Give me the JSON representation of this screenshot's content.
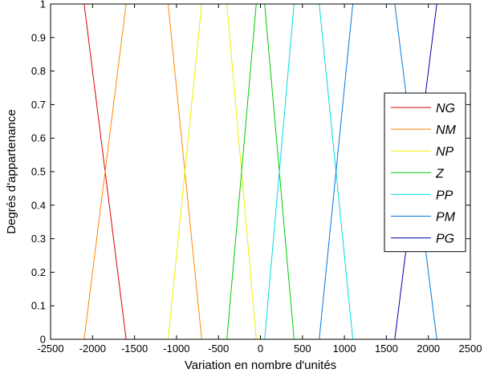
{
  "chart_data": {
    "type": "line",
    "xlabel": "Variation en nombre d'unités",
    "ylabel": "Degrés d'appartenance",
    "xlim": [
      -2500,
      2500
    ],
    "ylim": [
      0,
      1
    ],
    "xticks": [
      "-2500",
      "-2000",
      "-1500",
      "-1000",
      "-500",
      "0",
      "500",
      "1000",
      "1500",
      "2000",
      "2500"
    ],
    "yticks": [
      "0",
      "0.1",
      "0.2",
      "0.3",
      "0.4",
      "0.5",
      "0.6",
      "0.7",
      "0.8",
      "0.9",
      "1"
    ],
    "grid": false,
    "legend_position": "right",
    "series": [
      {
        "name": "NG",
        "color": "#dd0000",
        "x": [
          -2500,
          -2100,
          -1600,
          2500
        ],
        "y": [
          1,
          1,
          0,
          0
        ]
      },
      {
        "name": "NM",
        "color": "#ff8800",
        "x": [
          -2500,
          -2100,
          -1600,
          -1100,
          -700,
          2500
        ],
        "y": [
          0,
          0,
          1,
          1,
          0,
          0
        ]
      },
      {
        "name": "NP",
        "color": "#eeee00",
        "x": [
          -2500,
          -1100,
          -700,
          -400,
          -50,
          2500
        ],
        "y": [
          0,
          0,
          1,
          1,
          0,
          0
        ]
      },
      {
        "name": "Z",
        "color": "#00cc00",
        "x": [
          -2500,
          -400,
          -50,
          50,
          400,
          2500
        ],
        "y": [
          0,
          0,
          1,
          1,
          0,
          0
        ]
      },
      {
        "name": "PP",
        "color": "#00dddd",
        "x": [
          -2500,
          50,
          400,
          700,
          1100,
          2500
        ],
        "y": [
          0,
          0,
          1,
          1,
          0,
          0
        ]
      },
      {
        "name": "PM",
        "color": "#0077dd",
        "x": [
          -2500,
          700,
          1100,
          1600,
          2100,
          2500
        ],
        "y": [
          0,
          0,
          1,
          1,
          0,
          0
        ]
      },
      {
        "name": "PG",
        "color": "#0000aa",
        "x": [
          -2500,
          1600,
          2100,
          2500
        ],
        "y": [
          0,
          0,
          1,
          1
        ]
      }
    ]
  }
}
